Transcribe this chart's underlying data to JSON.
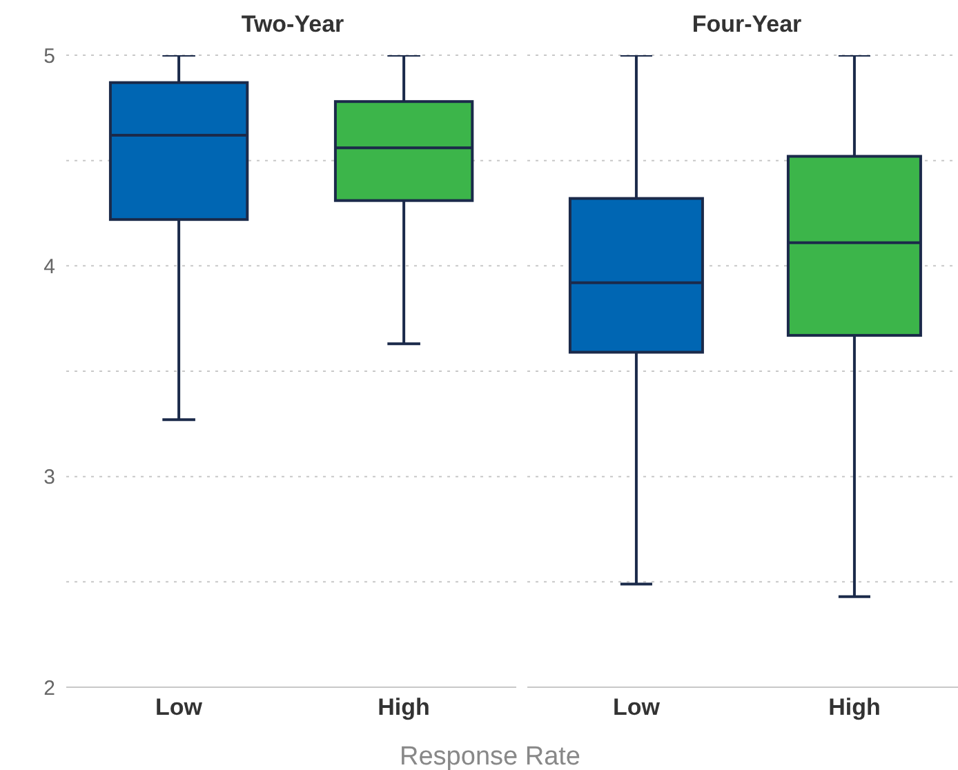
{
  "chart_data": [
    {
      "type": "box",
      "title": "Two-Year",
      "xlabel": "Response Rate",
      "categories": [
        "Low",
        "High"
      ],
      "colors": [
        "#0066b3",
        "#3cb54a"
      ],
      "boxes": [
        {
          "low": 3.27,
          "q1": 4.22,
          "median": 4.62,
          "q3": 4.87,
          "high": 5
        },
        {
          "low": 3.63,
          "q1": 4.31,
          "median": 4.56,
          "q3": 4.78,
          "high": 5
        }
      ],
      "ylim": [
        2,
        5
      ],
      "yticks": [
        2,
        {
          "value": 2.5,
          "label": null
        },
        3,
        {
          "value": 3.5,
          "label": null
        },
        4,
        {
          "value": 4.5,
          "label": null
        },
        5
      ],
      "grid": "y"
    },
    {
      "type": "box",
      "title": "Four-Year",
      "categories": [
        "Low",
        "High"
      ],
      "colors": [
        "#0066b3",
        "#3cb54a"
      ],
      "boxes": [
        {
          "low": 2.49,
          "q1": 3.59,
          "median": 3.92,
          "q3": 4.32,
          "high": 5
        },
        {
          "low": 2.43,
          "q1": 3.67,
          "median": 4.11,
          "q3": 4.52,
          "high": 5
        }
      ],
      "ylim": [
        2,
        5
      ],
      "yticks": [
        2,
        {
          "value": 2.5,
          "label": null
        },
        3,
        {
          "value": 3.5,
          "label": null
        },
        4,
        {
          "value": 4.5,
          "label": null
        },
        5
      ],
      "grid": "y",
      "tick_labels": "x"
    }
  ]
}
